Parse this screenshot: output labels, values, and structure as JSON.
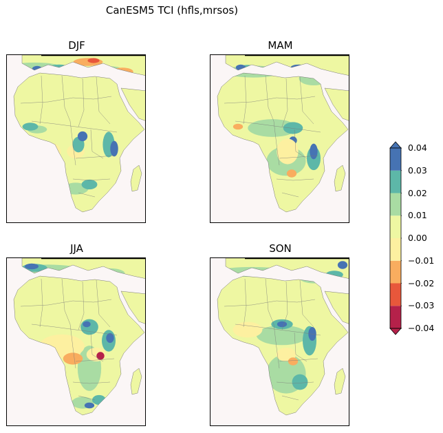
{
  "figure": {
    "title": "CanESM5 TCI (hfls,mrsos)"
  },
  "panels": [
    {
      "label": "DJF"
    },
    {
      "label": "MAM"
    },
    {
      "label": "JJA"
    },
    {
      "label": "SON"
    }
  ],
  "colorbar": {
    "ticks": [
      "0.04",
      "0.03",
      "0.02",
      "0.01",
      "0.00",
      "−0.01",
      "−0.02",
      "−0.03",
      "−0.04"
    ],
    "levels": [
      -0.04,
      -0.03,
      -0.02,
      -0.01,
      0.0,
      0.01,
      0.02,
      0.03,
      0.04
    ],
    "colors": [
      "#b5214a",
      "#e8573b",
      "#f9ad5f",
      "#fdf0a0",
      "#eef7a2",
      "#a9dca3",
      "#5db7a8",
      "#4673b3"
    ],
    "extend": "both"
  },
  "colors": {
    "ocean": "#fbf6f6",
    "land_base": "#eef7a2"
  }
}
